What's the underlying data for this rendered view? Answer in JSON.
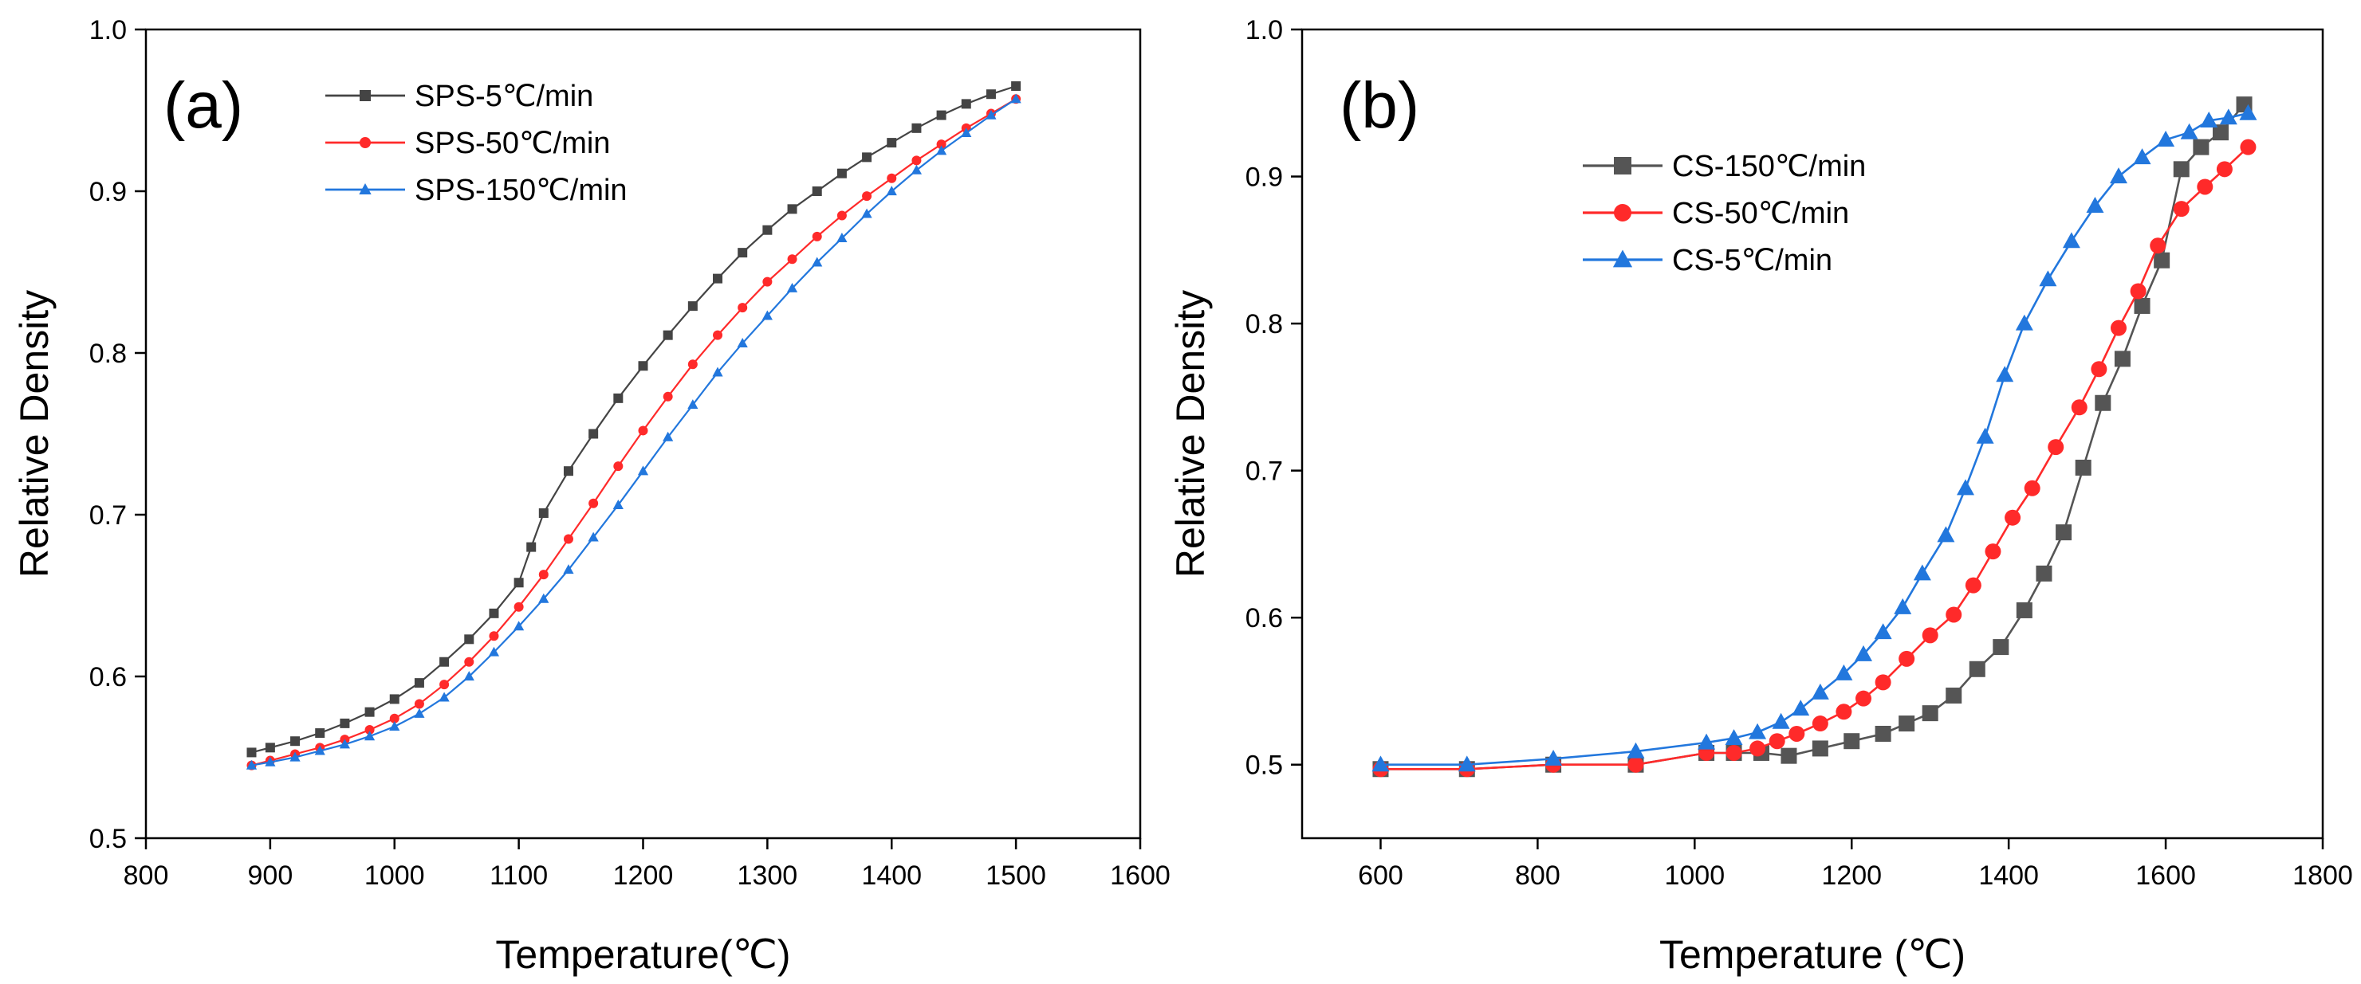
{
  "chart_data": [
    {
      "type": "line",
      "panel_label": "(a)",
      "xlabel": "Temperature(℃)",
      "ylabel": "Relative Density",
      "xlim": [
        800,
        1600
      ],
      "ylim": [
        0.5,
        1.0
      ],
      "xticks": [
        "800",
        "900",
        "1000",
        "1100",
        "1200",
        "1300",
        "1400",
        "1500",
        "1600"
      ],
      "yticks": [
        "0.5",
        "0.6",
        "0.7",
        "0.8",
        "0.9",
        "1.0"
      ],
      "legend_position": "top-left",
      "series": [
        {
          "name": "SPS-5℃/min",
          "color": "#444444",
          "marker": "square",
          "x": [
            885,
            900,
            920,
            940,
            960,
            980,
            1000,
            1020,
            1040,
            1060,
            1080,
            1100,
            1110,
            1120,
            1140,
            1160,
            1180,
            1200,
            1220,
            1240,
            1260,
            1280,
            1300,
            1320,
            1340,
            1360,
            1380,
            1400,
            1420,
            1440,
            1460,
            1480,
            1500
          ],
          "values": [
            0.553,
            0.556,
            0.56,
            0.565,
            0.571,
            0.578,
            0.586,
            0.596,
            0.609,
            0.623,
            0.639,
            0.658,
            0.68,
            0.701,
            0.727,
            0.75,
            0.772,
            0.792,
            0.811,
            0.829,
            0.846,
            0.862,
            0.876,
            0.889,
            0.9,
            0.911,
            0.921,
            0.93,
            0.939,
            0.947,
            0.954,
            0.96,
            0.965
          ]
        },
        {
          "name": "SPS-50℃/min",
          "color": "#ff2a2a",
          "marker": "circle",
          "x": [
            885,
            900,
            920,
            940,
            960,
            980,
            1000,
            1020,
            1040,
            1060,
            1080,
            1100,
            1120,
            1140,
            1160,
            1180,
            1200,
            1220,
            1240,
            1260,
            1280,
            1300,
            1320,
            1340,
            1360,
            1380,
            1400,
            1420,
            1440,
            1460,
            1480,
            1500
          ],
          "values": [
            0.545,
            0.548,
            0.552,
            0.556,
            0.561,
            0.567,
            0.574,
            0.583,
            0.595,
            0.609,
            0.625,
            0.643,
            0.663,
            0.685,
            0.707,
            0.73,
            0.752,
            0.773,
            0.793,
            0.811,
            0.828,
            0.844,
            0.858,
            0.872,
            0.885,
            0.897,
            0.908,
            0.919,
            0.929,
            0.939,
            0.948,
            0.957
          ]
        },
        {
          "name": "SPS-150℃/min",
          "color": "#2277dd",
          "marker": "triangle",
          "x": [
            885,
            900,
            920,
            940,
            960,
            980,
            1000,
            1020,
            1040,
            1060,
            1080,
            1100,
            1120,
            1140,
            1160,
            1180,
            1200,
            1220,
            1240,
            1260,
            1280,
            1300,
            1320,
            1340,
            1360,
            1380,
            1400,
            1420,
            1440,
            1460,
            1480,
            1500
          ],
          "values": [
            0.545,
            0.547,
            0.55,
            0.554,
            0.558,
            0.563,
            0.569,
            0.577,
            0.587,
            0.6,
            0.615,
            0.631,
            0.648,
            0.666,
            0.686,
            0.706,
            0.727,
            0.748,
            0.768,
            0.788,
            0.806,
            0.823,
            0.84,
            0.856,
            0.871,
            0.886,
            0.9,
            0.913,
            0.925,
            0.936,
            0.947,
            0.957
          ]
        }
      ]
    },
    {
      "type": "line",
      "panel_label": "(b)",
      "xlabel": "Temperature (℃)",
      "ylabel": "Relative Density",
      "xlim": [
        500,
        1800
      ],
      "ylim": [
        0.45,
        1.0
      ],
      "xticks": [
        "600",
        "800",
        "1000",
        "1200",
        "1400",
        "1600",
        "1800"
      ],
      "yticks": [
        "0.5",
        "0.6",
        "0.7",
        "0.8",
        "0.9",
        "1.0"
      ],
      "legend_position": "upper-center",
      "series": [
        {
          "name": "CS-150℃/min",
          "color": "#555555",
          "marker": "square",
          "x": [
            600,
            710,
            820,
            925,
            1015,
            1050,
            1085,
            1120,
            1160,
            1200,
            1240,
            1270,
            1300,
            1330,
            1360,
            1390,
            1420,
            1445,
            1470,
            1495,
            1520,
            1545,
            1570,
            1595,
            1620,
            1645,
            1670,
            1700
          ],
          "values": [
            0.497,
            0.497,
            0.5,
            0.5,
            0.508,
            0.508,
            0.508,
            0.506,
            0.511,
            0.516,
            0.521,
            0.528,
            0.535,
            0.547,
            0.565,
            0.58,
            0.605,
            0.63,
            0.658,
            0.702,
            0.746,
            0.776,
            0.812,
            0.843,
            0.905,
            0.92,
            0.93,
            0.949
          ]
        },
        {
          "name": "CS-50℃/min",
          "color": "#ff2a2a",
          "marker": "circle",
          "x": [
            600,
            710,
            820,
            925,
            1015,
            1050,
            1080,
            1105,
            1130,
            1160,
            1190,
            1215,
            1240,
            1270,
            1300,
            1330,
            1355,
            1380,
            1405,
            1430,
            1460,
            1490,
            1515,
            1540,
            1565,
            1590,
            1620,
            1650,
            1675,
            1705
          ],
          "values": [
            0.497,
            0.497,
            0.5,
            0.5,
            0.508,
            0.508,
            0.511,
            0.516,
            0.521,
            0.528,
            0.536,
            0.545,
            0.556,
            0.572,
            0.588,
            0.602,
            0.622,
            0.645,
            0.668,
            0.688,
            0.716,
            0.743,
            0.769,
            0.797,
            0.822,
            0.853,
            0.878,
            0.893,
            0.905,
            0.92
          ]
        },
        {
          "name": "CS-5℃/min",
          "color": "#2277dd",
          "marker": "triangle",
          "x": [
            600,
            710,
            820,
            925,
            1015,
            1050,
            1080,
            1110,
            1135,
            1160,
            1190,
            1215,
            1240,
            1265,
            1290,
            1320,
            1345,
            1370,
            1395,
            1420,
            1450,
            1480,
            1510,
            1540,
            1570,
            1600,
            1630,
            1655,
            1680,
            1705
          ],
          "values": [
            0.5,
            0.5,
            0.504,
            0.509,
            0.515,
            0.518,
            0.522,
            0.529,
            0.538,
            0.549,
            0.562,
            0.575,
            0.59,
            0.607,
            0.63,
            0.656,
            0.688,
            0.723,
            0.765,
            0.8,
            0.83,
            0.856,
            0.88,
            0.9,
            0.913,
            0.925,
            0.93,
            0.938,
            0.94,
            0.943
          ]
        }
      ]
    }
  ]
}
